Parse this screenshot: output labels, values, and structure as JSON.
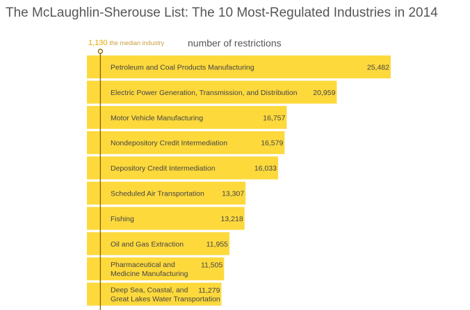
{
  "title": "The McLaughlin-Sherouse List: The 10 Most-Regulated Industries in 2014",
  "median": {
    "value_label": "1,130",
    "text": "the median industry"
  },
  "axis_label": "number of restrictions",
  "colors": {
    "bar": "#fdd93c",
    "median_line": "#8a6a00",
    "text": "#444444"
  },
  "chart_data": {
    "type": "bar",
    "orientation": "horizontal",
    "title": "The McLaughlin-Sherouse List: The 10 Most-Regulated Industries in 2014",
    "xlabel": "number of restrictions",
    "median": 1130,
    "categories": [
      [
        "Petroleum and Coal Products Manufacturing"
      ],
      [
        "Electric Power Generation, Transmission, and Distribution"
      ],
      [
        "Motor Vehicle Manufacturing"
      ],
      [
        "Nondepository Credit Intermediation"
      ],
      [
        "Depository Credit Intermediation"
      ],
      [
        "Scheduled Air Transportation"
      ],
      [
        "Fishing"
      ],
      [
        "Oil and Gas Extraction"
      ],
      [
        "Pharmaceutical and",
        "Medicine Manufacturing"
      ],
      [
        "Deep Sea, Coastal, and",
        "Great Lakes Water Transportation"
      ]
    ],
    "values": [
      25482,
      20959,
      16757,
      16579,
      16033,
      13307,
      13218,
      11955,
      11505,
      11279
    ],
    "value_labels": [
      "25,482",
      "20,959",
      "16,757",
      "16,579",
      "16,033",
      "13,307",
      "13,218",
      "11,955",
      "11,505",
      "11,279"
    ],
    "grid": false,
    "legend": "none"
  }
}
